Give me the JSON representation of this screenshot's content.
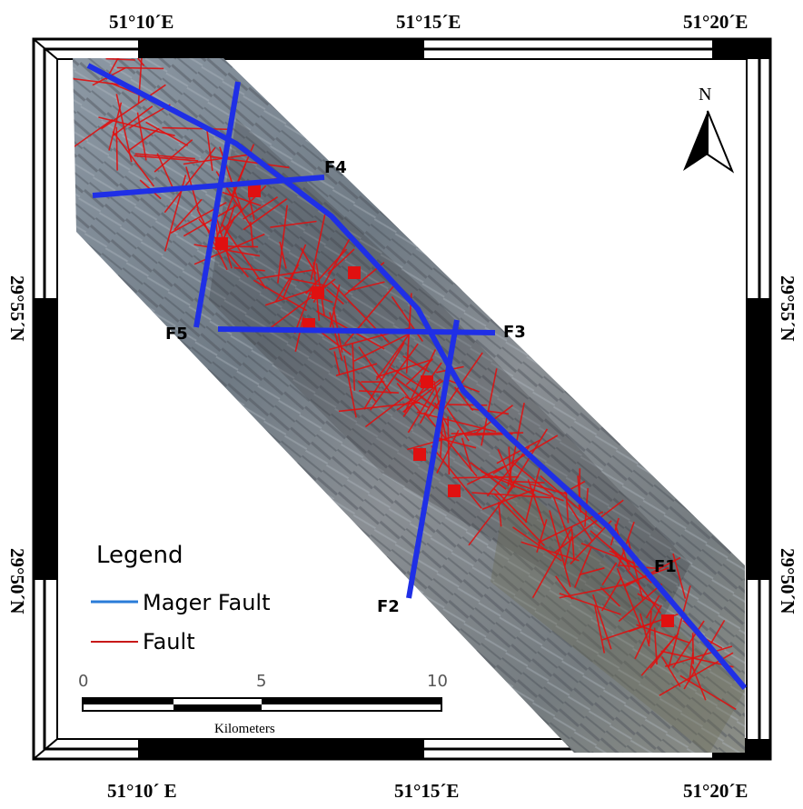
{
  "top_coords": [
    "51°10´E",
    "51°15´E",
    "51°20´E"
  ],
  "bottom_coords": [
    "51°10´ E",
    "51°15´E",
    "51°20´E"
  ],
  "left_coords": [
    "29°55´N",
    "29°50´N"
  ],
  "right_coords": [
    "29°55´N",
    "29°50´N"
  ],
  "north": "N",
  "fault_labels": {
    "f1": "F1",
    "f2": "F2",
    "f3": "F3",
    "f4": "F4",
    "f5": "F5"
  },
  "legend": {
    "title": "Legend",
    "mager_fault": "Mager Fault",
    "fault": "Fault"
  },
  "scale": {
    "ticks": [
      "0",
      "5",
      "10"
    ],
    "unit": "Kilometers"
  },
  "colors": {
    "mager_fault": "#1f2fe6",
    "fault": "#e01010",
    "legend_mager": "#2a7bd8",
    "legend_fault": "#c81818"
  }
}
